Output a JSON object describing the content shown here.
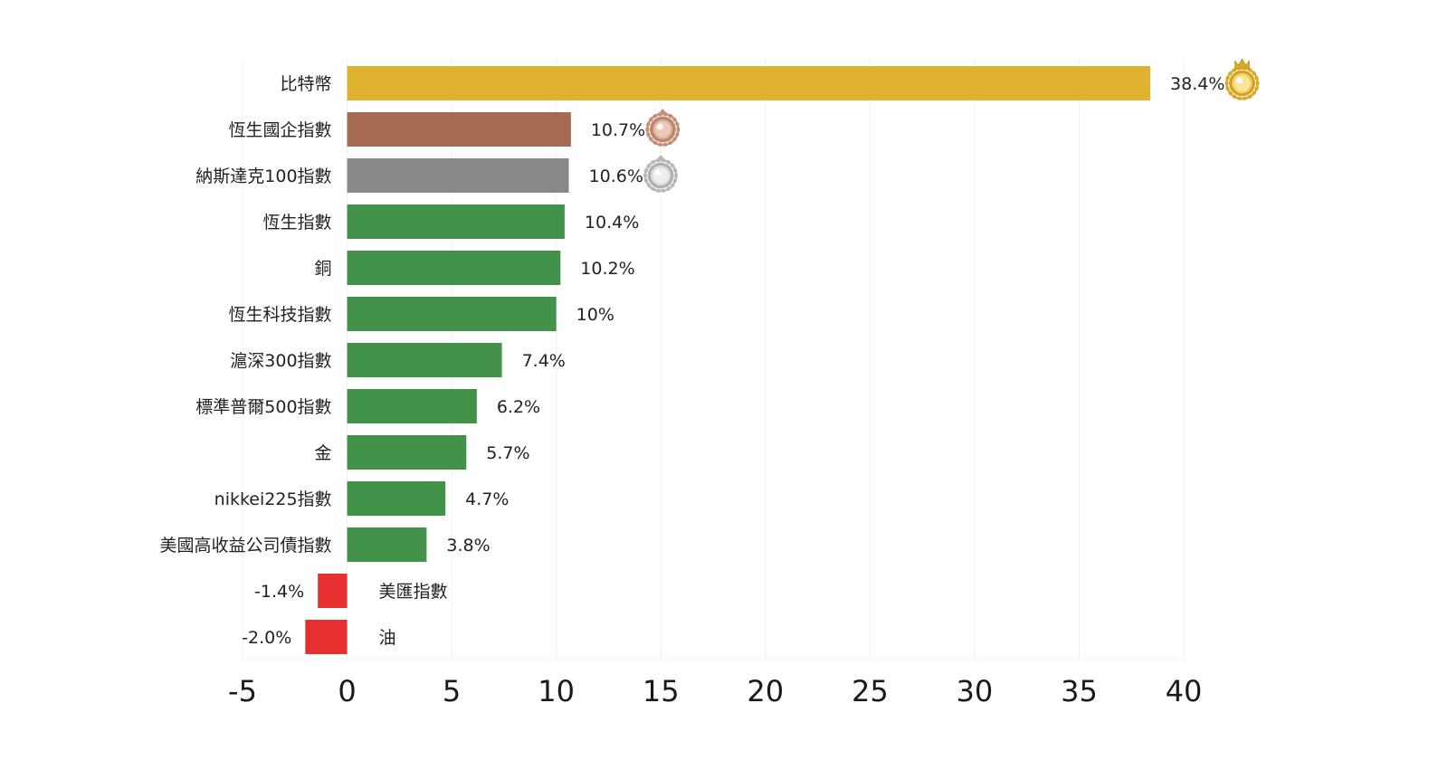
{
  "chart_data": {
    "type": "bar",
    "orientation": "horizontal",
    "categories": [
      "比特幣",
      "恆生國企指數",
      "納斯達克100指數",
      "恆生指數",
      "銅",
      "恆生科技指數",
      "滬深300指數",
      "標準普爾500指數",
      "金",
      "nikkei225指數",
      "美國高收益公司債指數",
      "美匯指數",
      "油"
    ],
    "values": [
      38.4,
      10.7,
      10.6,
      10.4,
      10.2,
      10.0,
      7.4,
      6.2,
      5.7,
      4.7,
      3.8,
      -1.4,
      -2.0
    ],
    "value_labels": [
      "38.4%",
      "10.7%",
      "10.6%",
      "10.4%",
      "10.2%",
      "10%",
      "7.4%",
      "6.2%",
      "5.7%",
      "4.7%",
      "3.8%",
      "-1.4%",
      "-2.0%"
    ],
    "medals": [
      "gold-medal-icon",
      "bronze-medal-icon",
      "silver-medal-icon",
      null,
      null,
      null,
      null,
      null,
      null,
      null,
      null,
      null,
      null
    ],
    "colors": [
      "#dfb22f",
      "#a56a52",
      "#888888",
      "#43924a",
      "#43924a",
      "#43924a",
      "#43924a",
      "#43924a",
      "#43924a",
      "#43924a",
      "#43924a",
      "#e63030",
      "#e63030"
    ],
    "xlim": [
      -5,
      40
    ],
    "xticks": [
      "-5",
      "0",
      "5",
      "10",
      "15",
      "20",
      "25",
      "30",
      "35",
      "40"
    ],
    "grid": true,
    "title": "",
    "xlabel": "",
    "ylabel": ""
  }
}
